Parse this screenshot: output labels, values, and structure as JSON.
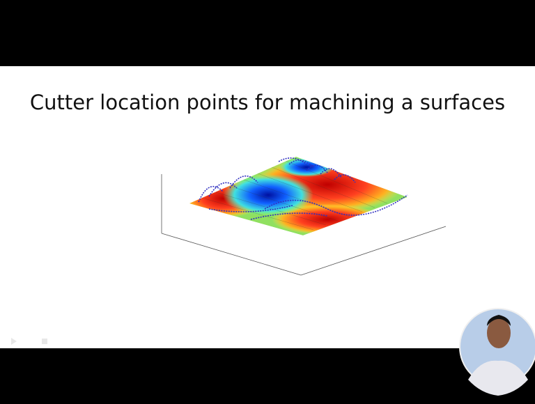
{
  "slide": {
    "title": "Cutter location points for machining a surfaces"
  }
}
